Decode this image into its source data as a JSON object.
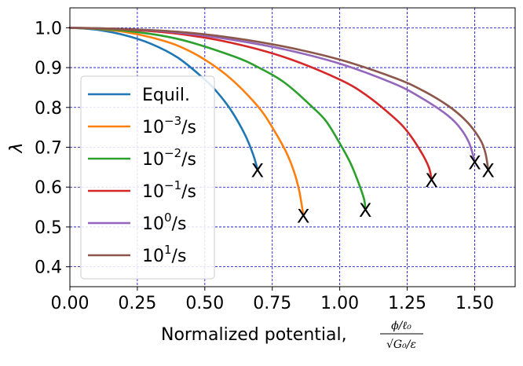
{
  "chart_data": {
    "type": "line",
    "xlabel": "Normalized potential,",
    "xlabel_fraction": {
      "numerator": "ϕ/ℓ₀",
      "denominator": "√G₀/ε"
    },
    "ylabel": "λ",
    "xlim": [
      0.0,
      1.65
    ],
    "ylim": [
      0.35,
      1.05
    ],
    "xticks": [
      0.0,
      0.25,
      0.5,
      0.75,
      1.0,
      1.25,
      1.5
    ],
    "xtick_labels": [
      "0.00",
      "0.25",
      "0.50",
      "0.75",
      "1.00",
      "1.25",
      "1.50"
    ],
    "yticks": [
      0.4,
      0.5,
      0.6,
      0.7,
      0.8,
      0.9,
      1.0
    ],
    "ytick_labels": [
      "0.4",
      "0.5",
      "0.6",
      "0.7",
      "0.8",
      "0.9",
      "1.0"
    ],
    "grid": true,
    "legend_position": "lower-left",
    "end_marker_text": "X",
    "series": [
      {
        "name": "Equil.",
        "legend_base": "Equil.",
        "legend_exp": "",
        "legend_suffix": "",
        "color": "#1f77b4",
        "x_end": 0.695,
        "y_end": 0.645,
        "points": [
          [
            0.0,
            1.0
          ],
          [
            0.1,
            0.995
          ],
          [
            0.2,
            0.982
          ],
          [
            0.3,
            0.96
          ],
          [
            0.4,
            0.925
          ],
          [
            0.5,
            0.87
          ],
          [
            0.55,
            0.835
          ],
          [
            0.6,
            0.79
          ],
          [
            0.65,
            0.73
          ],
          [
            0.68,
            0.68
          ],
          [
            0.695,
            0.645
          ]
        ]
      },
      {
        "name": "10^-3/s",
        "legend_base": "10",
        "legend_exp": "−3",
        "legend_suffix": "/s",
        "color": "#ff7f0e",
        "x_end": 0.865,
        "y_end": 0.53,
        "points": [
          [
            0.0,
            1.0
          ],
          [
            0.1,
            0.997
          ],
          [
            0.2,
            0.99
          ],
          [
            0.3,
            0.976
          ],
          [
            0.4,
            0.955
          ],
          [
            0.5,
            0.92
          ],
          [
            0.6,
            0.87
          ],
          [
            0.7,
            0.8
          ],
          [
            0.75,
            0.75
          ],
          [
            0.8,
            0.69
          ],
          [
            0.83,
            0.64
          ],
          [
            0.85,
            0.59
          ],
          [
            0.865,
            0.53
          ]
        ]
      },
      {
        "name": "10^-2/s",
        "legend_base": "10",
        "legend_exp": "−2",
        "legend_suffix": "/s",
        "color": "#2ca02c",
        "x_end": 1.095,
        "y_end": 0.545,
        "points": [
          [
            0.0,
            1.0
          ],
          [
            0.2,
            0.993
          ],
          [
            0.4,
            0.972
          ],
          [
            0.6,
            0.93
          ],
          [
            0.7,
            0.9
          ],
          [
            0.8,
            0.86
          ],
          [
            0.9,
            0.8
          ],
          [
            0.95,
            0.765
          ],
          [
            1.0,
            0.71
          ],
          [
            1.04,
            0.66
          ],
          [
            1.07,
            0.61
          ],
          [
            1.09,
            0.57
          ],
          [
            1.095,
            0.545
          ]
        ]
      },
      {
        "name": "10^-1/s",
        "legend_base": "10",
        "legend_exp": "−1",
        "legend_suffix": "/s",
        "color": "#d62728",
        "x_end": 1.34,
        "y_end": 0.62,
        "points": [
          [
            0.0,
            1.0
          ],
          [
            0.2,
            0.996
          ],
          [
            0.4,
            0.985
          ],
          [
            0.6,
            0.962
          ],
          [
            0.8,
            0.925
          ],
          [
            1.0,
            0.87
          ],
          [
            1.1,
            0.83
          ],
          [
            1.2,
            0.775
          ],
          [
            1.25,
            0.74
          ],
          [
            1.3,
            0.69
          ],
          [
            1.33,
            0.65
          ],
          [
            1.34,
            0.62
          ]
        ]
      },
      {
        "name": "10^0/s",
        "legend_base": "10",
        "legend_exp": "0",
        "legend_suffix": "/s",
        "color": "#9467bd",
        "x_end": 1.5,
        "y_end": 0.665,
        "points": [
          [
            0.0,
            1.0
          ],
          [
            0.2,
            0.997
          ],
          [
            0.4,
            0.988
          ],
          [
            0.6,
            0.97
          ],
          [
            0.8,
            0.945
          ],
          [
            1.0,
            0.91
          ],
          [
            1.2,
            0.86
          ],
          [
            1.3,
            0.825
          ],
          [
            1.4,
            0.78
          ],
          [
            1.45,
            0.745
          ],
          [
            1.48,
            0.71
          ],
          [
            1.5,
            0.665
          ]
        ]
      },
      {
        "name": "10^1/s",
        "legend_base": "10",
        "legend_exp": "1",
        "legend_suffix": "/s",
        "color": "#8c564b",
        "x_end": 1.55,
        "y_end": 0.645,
        "points": [
          [
            0.0,
            1.0
          ],
          [
            0.2,
            0.997
          ],
          [
            0.4,
            0.99
          ],
          [
            0.6,
            0.975
          ],
          [
            0.8,
            0.952
          ],
          [
            1.0,
            0.92
          ],
          [
            1.2,
            0.875
          ],
          [
            1.3,
            0.845
          ],
          [
            1.4,
            0.805
          ],
          [
            1.47,
            0.765
          ],
          [
            1.52,
            0.72
          ],
          [
            1.54,
            0.685
          ],
          [
            1.55,
            0.645
          ]
        ]
      }
    ]
  }
}
